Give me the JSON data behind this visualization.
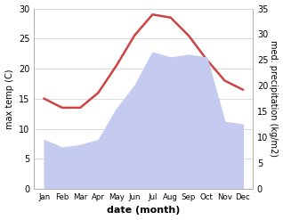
{
  "months": [
    "Jan",
    "Feb",
    "Mar",
    "Apr",
    "May",
    "Jun",
    "Jul",
    "Aug",
    "Sep",
    "Oct",
    "Nov",
    "Dec"
  ],
  "temperature": [
    15.0,
    13.5,
    13.5,
    16.0,
    20.5,
    25.5,
    29.0,
    28.5,
    25.5,
    21.5,
    18.0,
    16.5
  ],
  "precipitation": [
    9.5,
    8.0,
    8.5,
    9.5,
    15.5,
    20.0,
    26.5,
    25.5,
    26.0,
    25.5,
    13.0,
    12.5
  ],
  "precip_fill_color": "#c5cbf0",
  "temp_color": "#cc4444",
  "xlabel": "date (month)",
  "ylabel_left": "max temp (C)",
  "ylabel_right": "med. precipitation (kg/m2)",
  "ylim_left": [
    0,
    30
  ],
  "ylim_right": [
    0,
    35
  ],
  "yticks_left": [
    0,
    5,
    10,
    15,
    20,
    25,
    30
  ],
  "yticks_right": [
    0,
    5,
    10,
    15,
    20,
    25,
    30,
    35
  ],
  "bg_color": "#ffffff",
  "line_width": 1.8,
  "grid_color": "#cccccc"
}
